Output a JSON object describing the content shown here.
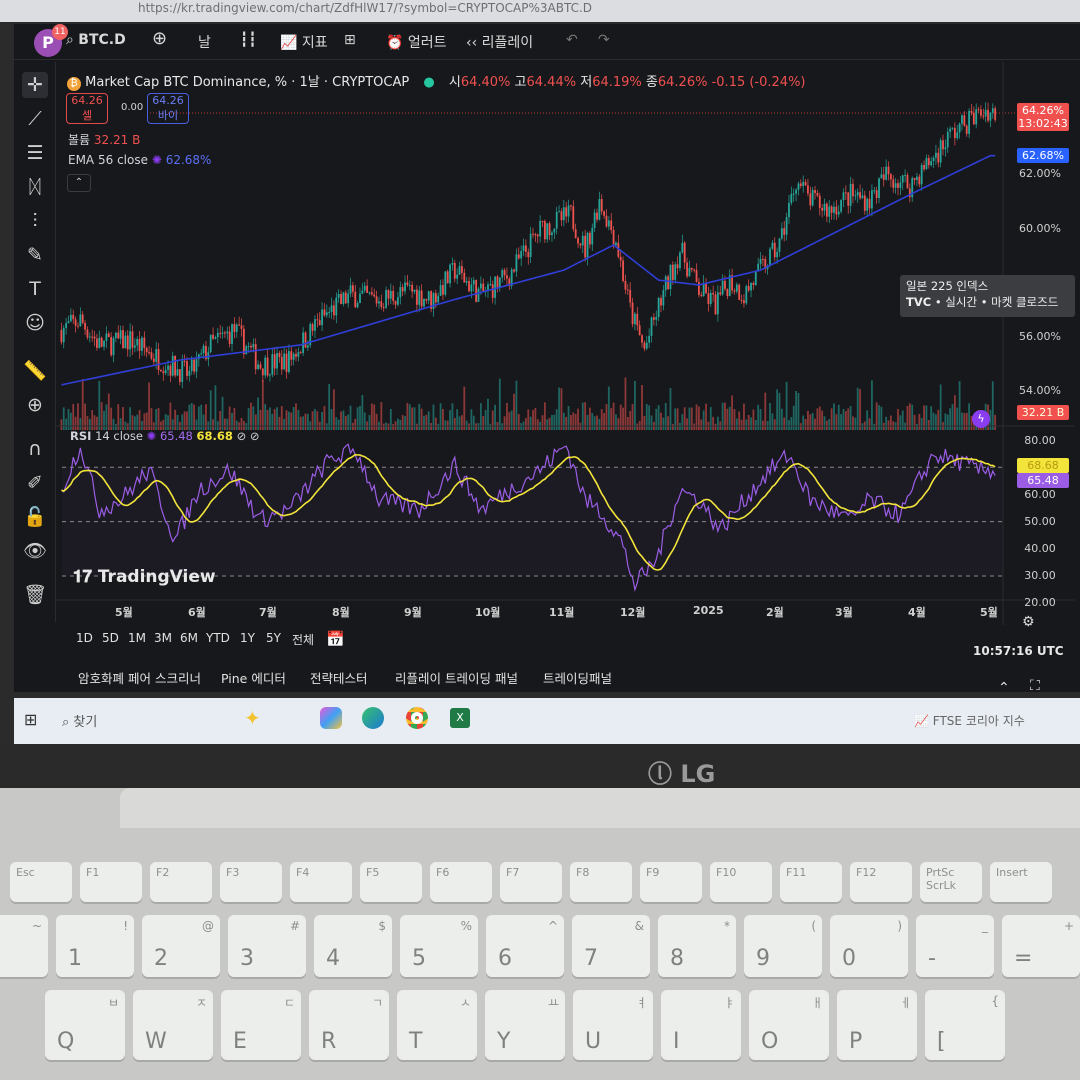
{
  "browser": {
    "url": "https://kr.tradingview.com/chart/ZdfHlW17/?symbol=CRYPTOCAP%3ABTC.D"
  },
  "toolbar": {
    "avatar": "P",
    "notifications": "11",
    "symbol": "BTC.D",
    "interval": "날",
    "indicators": "지표",
    "alert": "얼러트",
    "replay": "리플레이"
  },
  "legend": {
    "title": "Market Cap BTC Dominance, % · 1날 · CRYPTOCAP",
    "o_label": "시",
    "o": "64.40%",
    "h_label": "고",
    "h": "64.44%",
    "l_label": "저",
    "l": "64.19%",
    "c_label": "종",
    "c": "64.26%",
    "change": "-0.15 (-0.24%)",
    "sell_price": "64.26",
    "sell_label": "셀",
    "spread": "0.00",
    "buy_price": "64.26",
    "buy_label": "바이",
    "volume_label": "볼륨",
    "volume": "32.21 B",
    "ema_label": "EMA",
    "ema_params": "56 close",
    "ema_value": "62.68%"
  },
  "price_axis": {
    "labels": [
      "62.00%",
      "60.00%",
      "56.00%",
      "54.00%"
    ],
    "current": "64.26%",
    "countdown": "13:02:43",
    "ema_tag": "62.68%",
    "volume_tag": "32.21 B"
  },
  "tooltip": {
    "title": "일본 225 인덱스",
    "source": "TVC",
    "status1": "실시간",
    "status2": "마켓 클로즈드"
  },
  "rsi": {
    "label": "RSI",
    "params": "14 close",
    "value": "65.48",
    "ma_value": "68.68",
    "axis": [
      "80.00",
      "60.00",
      "50.00",
      "40.00",
      "30.00",
      "20.00"
    ]
  },
  "logo": "TradingView",
  "time_axis": [
    "5월",
    "6월",
    "7월",
    "8월",
    "9월",
    "10월",
    "11월",
    "12월",
    "2025",
    "2월",
    "3월",
    "4월",
    "5월"
  ],
  "ranges": [
    "1D",
    "5D",
    "1M",
    "3M",
    "6M",
    "YTD",
    "1Y",
    "5Y",
    "전체"
  ],
  "clock": "10:57:16 UTC",
  "bottom_tabs": [
    "암호화폐 페어 스크리너",
    "Pine 에디터",
    "전략테스터",
    "리플레이 트레이딩 패널",
    "트레이딩패널"
  ],
  "taskbar": {
    "search": "찾기",
    "widget": "FTSE 코리아 지수"
  },
  "laptop_brand": "LG",
  "keyboard": {
    "fn_row": [
      "Esc",
      "F1",
      "F2",
      "F3",
      "F4",
      "F5",
      "F6",
      "F7",
      "F8",
      "F9",
      "F10",
      "F11",
      "F12",
      "PrtSc ScrLk",
      "Insert"
    ],
    "num_row": [
      [
        "`",
        "~"
      ],
      [
        "1",
        "!"
      ],
      [
        "2",
        "@"
      ],
      [
        "3",
        "#"
      ],
      [
        "4",
        "$"
      ],
      [
        "5",
        "%"
      ],
      [
        "6",
        "^"
      ],
      [
        "7",
        "&"
      ],
      [
        "8",
        "*"
      ],
      [
        "9",
        "("
      ],
      [
        "0",
        ")"
      ],
      [
        "-",
        "_"
      ],
      [
        "=",
        "+"
      ]
    ],
    "q_row": [
      [
        "Q",
        "ㅂ"
      ],
      [
        "W",
        "ㅈ"
      ],
      [
        "E",
        "ㄷ"
      ],
      [
        "R",
        "ㄱ"
      ],
      [
        "T",
        "ㅅ"
      ],
      [
        "Y",
        "ㅛ"
      ],
      [
        "U",
        "ㅕ"
      ],
      [
        "I",
        "ㅑ"
      ],
      [
        "O",
        "ㅐ"
      ],
      [
        "P",
        "ㅔ"
      ],
      [
        "[",
        "{"
      ]
    ]
  },
  "colors": {
    "up": "#26a69a",
    "down": "#ef5350",
    "ema": "#2f3fd8",
    "rsi": "#9b5de5",
    "rsi_ma": "#f2e43a",
    "price_tag": "#f0514f",
    "ema_tag": "#2962ff"
  },
  "chart_data": {
    "type": "candlestick",
    "timeframe": "1날",
    "price_range": [
      53.5,
      65
    ],
    "close": [
      [
        "2024-04-05",
        56.22
      ],
      [
        "2024-04-13",
        56.59
      ],
      [
        "2024-04-21",
        55.67
      ],
      [
        "2024-05-04",
        55.85
      ],
      [
        "2024-05-17",
        55.11
      ],
      [
        "2024-05-29",
        54.56
      ],
      [
        "2024-06-07",
        55.67
      ],
      [
        "2024-06-17",
        56.22
      ],
      [
        "2024-06-28",
        54.93
      ],
      [
        "2024-07-10",
        55.11
      ],
      [
        "2024-07-23",
        56.59
      ],
      [
        "2024-08-05",
        57.52
      ],
      [
        "2024-08-17",
        57.33
      ],
      [
        "2024-08-30",
        57.7
      ],
      [
        "2024-09-08",
        57.33
      ],
      [
        "2024-09-18",
        58.44
      ],
      [
        "2024-09-29",
        57.52
      ],
      [
        "2024-10-11",
        58.26
      ],
      [
        "2024-10-24",
        59.93
      ],
      [
        "2024-11-06",
        60.48
      ],
      [
        "2024-11-12",
        59.19
      ],
      [
        "2024-11-18",
        61.04
      ],
      [
        "2024-11-25",
        59.56
      ],
      [
        "2024-12-01",
        56.96
      ],
      [
        "2024-12-07",
        55.48
      ],
      [
        "2024-12-14",
        57.33
      ],
      [
        "2024-12-22",
        59.19
      ],
      [
        "2024-12-30",
        57.7
      ],
      [
        "2025-01-06",
        57.15
      ],
      [
        "2025-01-12",
        58.07
      ],
      [
        "2025-01-18",
        57.52
      ],
      [
        "2025-01-25",
        58.44
      ],
      [
        "2025-02-02",
        59.37
      ],
      [
        "2025-02-09",
        61.78
      ],
      [
        "2025-02-15",
        61.04
      ],
      [
        "2025-02-23",
        60.67
      ],
      [
        "2025-03-04",
        61.22
      ],
      [
        "2025-03-12",
        61.04
      ],
      [
        "2025-03-19",
        61.96
      ],
      [
        "2025-03-29",
        61.59
      ],
      [
        "2025-04-07",
        62.52
      ],
      [
        "2025-04-15",
        63.44
      ],
      [
        "2025-04-23",
        64.0
      ],
      [
        "2025-04-30",
        64.37
      ],
      [
        "2025-05-04",
        64.26
      ]
    ],
    "ema56": [
      [
        "2024-04-05",
        54.19
      ],
      [
        "2024-05-25",
        55.11
      ],
      [
        "2024-07-15",
        55.67
      ],
      [
        "2024-09-17",
        57.33
      ],
      [
        "2024-11-03",
        58.44
      ],
      [
        "2024-11-24",
        59.37
      ],
      [
        "2024-12-13",
        58.07
      ],
      [
        "2024-12-30",
        57.89
      ],
      [
        "2025-01-25",
        58.44
      ],
      [
        "2025-02-11",
        59.19
      ],
      [
        "2025-03-12",
        60.48
      ],
      [
        "2025-04-02",
        61.41
      ],
      [
        "2025-05-02",
        62.68
      ]
    ],
    "rsi14": [
      [
        "2024-04-05",
        61.6
      ],
      [
        "2024-04-13",
        78.2
      ],
      [
        "2024-04-21",
        54.3
      ],
      [
        "2024-04-30",
        58
      ],
      [
        "2024-05-12",
        69
      ],
      [
        "2024-05-23",
        43.2
      ],
      [
        "2024-06-02",
        61.6
      ],
      [
        "2024-06-15",
        69
      ],
      [
        "2024-06-28",
        50.6
      ],
      [
        "2024-07-10",
        54.3
      ],
      [
        "2024-07-27",
        72.6
      ],
      [
        "2024-08-07",
        76.3
      ],
      [
        "2024-08-17",
        58
      ],
      [
        "2024-09-03",
        54.3
      ],
      [
        "2024-09-18",
        70.8
      ],
      [
        "2024-09-29",
        54.3
      ],
      [
        "2024-10-11",
        61.6
      ],
      [
        "2024-10-24",
        69
      ],
      [
        "2024-11-04",
        78.2
      ],
      [
        "2024-11-12",
        58
      ],
      [
        "2024-11-18",
        54.3
      ],
      [
        "2024-11-27",
        43.2
      ],
      [
        "2024-12-03",
        26.7
      ],
      [
        "2024-12-12",
        35.9
      ],
      [
        "2024-12-22",
        61.6
      ],
      [
        "2024-12-30",
        58
      ],
      [
        "2025-01-08",
        46.9
      ],
      [
        "2025-01-20",
        59.8
      ],
      [
        "2025-01-29",
        69
      ],
      [
        "2025-02-06",
        74.5
      ],
      [
        "2025-02-15",
        58
      ],
      [
        "2025-02-23",
        54.3
      ],
      [
        "2025-03-04",
        50.6
      ],
      [
        "2025-03-12",
        58
      ],
      [
        "2025-03-25",
        52.4
      ],
      [
        "2025-04-02",
        65.3
      ],
      [
        "2025-04-08",
        74.5
      ],
      [
        "2025-04-17",
        72.6
      ],
      [
        "2025-04-27",
        69
      ]
    ],
    "rsi_levels": [
      70,
      50,
      30
    ],
    "rsi_range": [
      20,
      80
    ]
  }
}
